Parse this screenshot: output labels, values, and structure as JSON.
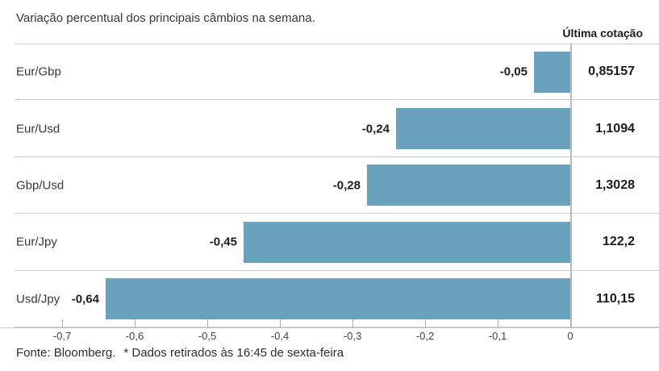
{
  "title": "Variação percentual dos principais câmbios na semana.",
  "header": {
    "last_quote_label": "Última cotação"
  },
  "rows": [
    {
      "pair": "Eur/Gbp",
      "change": "-0,05",
      "quote": "0,85157"
    },
    {
      "pair": "Eur/Usd",
      "change": "-0,24",
      "quote": "1,1094"
    },
    {
      "pair": "Gbp/Usd",
      "change": "-0,28",
      "quote": "1,3028"
    },
    {
      "pair": "Eur/Jpy",
      "change": "-0,45",
      "quote": "122,2"
    },
    {
      "pair": "Usd/Jpy",
      "change": "-0,64",
      "quote": "110,15"
    }
  ],
  "chart_data": {
    "type": "bar",
    "orientation": "horizontal",
    "title": "Variação percentual dos principais câmbios na semana.",
    "categories": [
      "Eur/Gbp",
      "Eur/Usd",
      "Gbp/Usd",
      "Eur/Jpy",
      "Usd/Jpy"
    ],
    "values": [
      -0.05,
      -0.24,
      -0.28,
      -0.45,
      -0.64
    ],
    "value_labels": [
      "-0,05",
      "-0,24",
      "-0,28",
      "-0,45",
      "-0,64"
    ],
    "secondary_column": {
      "label": "Última cotação",
      "values": [
        "0,85157",
        "1,1094",
        "1,3028",
        "122,2",
        "110,15"
      ]
    },
    "xlabel": "",
    "ylabel": "",
    "xlim": [
      -0.76,
      0.12
    ],
    "x_ticks": [
      -0.7,
      -0.6,
      -0.5,
      -0.4,
      -0.3,
      -0.2,
      -0.1,
      0
    ],
    "x_tick_labels": [
      "-0,7",
      "-0,6",
      "-0,5",
      "-0,4",
      "-0,3",
      "-0,2",
      "-0,1",
      "0"
    ],
    "grid": false,
    "legend": false,
    "bar_color": "#6AA2BE"
  },
  "footer": {
    "source": "Fonte: Bloomberg.",
    "note": "* Dados retirados às 16:45 de sexta-feira"
  }
}
